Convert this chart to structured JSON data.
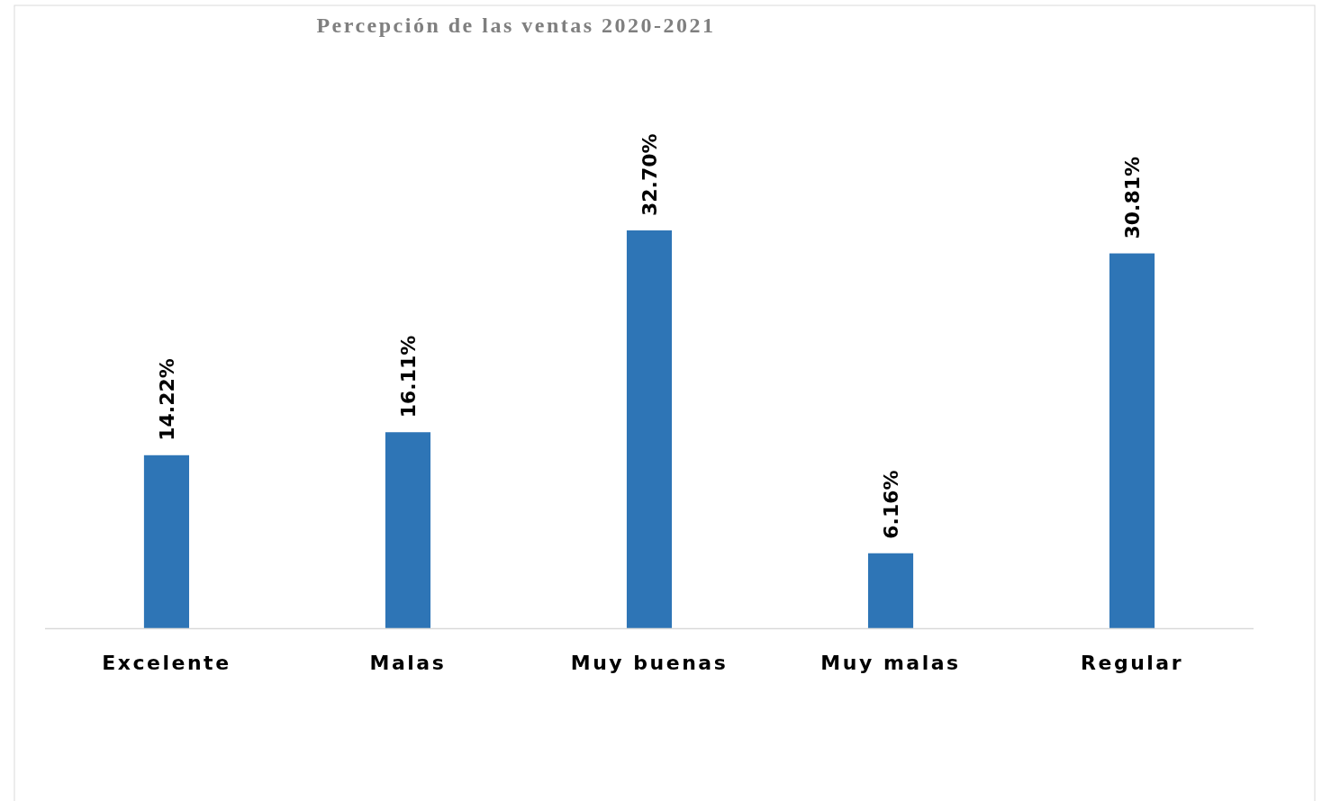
{
  "chart_data": {
    "type": "bar",
    "title": "Percepción de las ventas 2020-2021",
    "categories": [
      "Excelente",
      "Malas",
      "Muy buenas",
      "Muy malas",
      "Regular"
    ],
    "values": [
      14.22,
      16.11,
      32.7,
      6.16,
      30.81
    ],
    "value_labels": [
      "14.22%",
      "16.11%",
      "32.70%",
      "6.16%",
      "30.81%"
    ],
    "color": "#2e75b6"
  }
}
